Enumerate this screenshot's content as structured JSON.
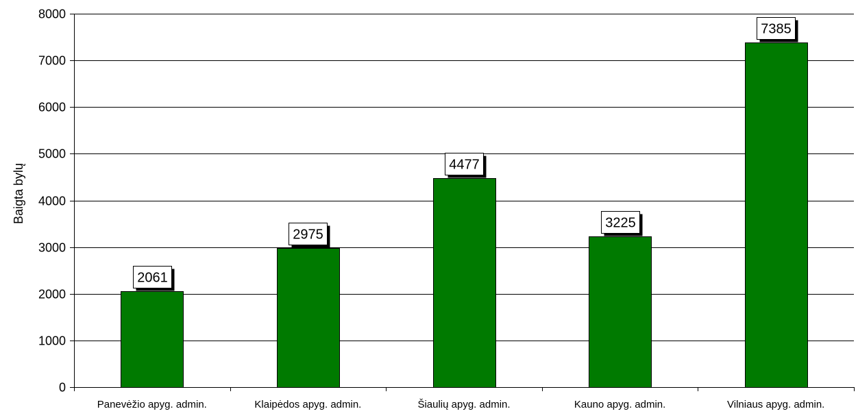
{
  "chart_data": {
    "type": "bar",
    "title": "",
    "xlabel": "",
    "ylabel": "Baigta bylų",
    "categories": [
      "Panevėžio apyg. admin.",
      "Klaipėdos apyg. admin.",
      "Šiaulių apyg. admin.",
      "Kauno apyg. admin.",
      "Vilniaus apyg. admin."
    ],
    "values": [
      2061,
      2975,
      4477,
      3225,
      7385
    ],
    "data_labels": [
      "2061",
      "2975",
      "4477",
      "3225",
      "7385"
    ],
    "ylim": [
      0,
      8000
    ],
    "yticks": [
      0,
      1000,
      2000,
      3000,
      4000,
      5000,
      6000,
      7000,
      8000
    ],
    "ytick_labels": [
      "0",
      "1000",
      "2000",
      "3000",
      "4000",
      "5000",
      "6000",
      "7000",
      "8000"
    ],
    "grid": true,
    "legend": "none",
    "colors": {
      "bar": "#007A00",
      "bar_edge": "#000000",
      "grid": "#000000",
      "label_box_fill": "#ffffff",
      "label_box_shadow": "#000000"
    }
  }
}
